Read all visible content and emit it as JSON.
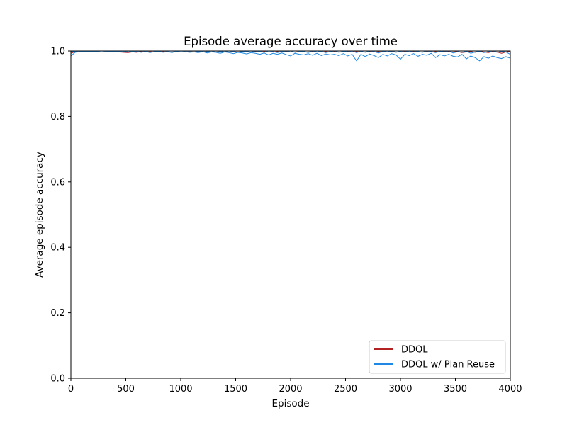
{
  "chart_data": {
    "type": "line",
    "title": "Episode average accuracy over time",
    "xlabel": "Episode",
    "ylabel": "Average episode accuracy",
    "xlim": [
      0,
      4000
    ],
    "ylim": [
      0.0,
      1.0
    ],
    "xticks": [
      0,
      500,
      1000,
      1500,
      2000,
      2500,
      3000,
      3500,
      4000
    ],
    "xtick_labels": [
      "0",
      "500",
      "1000",
      "1500",
      "2000",
      "2500",
      "3000",
      "3500",
      "4000"
    ],
    "yticks": [
      0.0,
      0.2,
      0.4,
      0.6,
      0.8,
      1.0
    ],
    "ytick_labels": [
      "0.0",
      "0.2",
      "0.4",
      "0.6",
      "0.8",
      "1.0"
    ],
    "grid": false,
    "legend_position": "bottom-right",
    "series": [
      {
        "name": "DDQL",
        "color": "#b22222",
        "x": [
          0,
          40,
          80,
          120,
          160,
          200,
          240,
          280,
          320,
          360,
          400,
          440,
          480,
          520,
          560,
          600,
          640,
          680,
          720,
          760,
          800,
          840,
          880,
          920,
          960,
          1000,
          1040,
          1080,
          1120,
          1160,
          1200,
          1240,
          1280,
          1320,
          1360,
          1400,
          1440,
          1480,
          1520,
          1560,
          1600,
          1640,
          1680,
          1720,
          1760,
          1800,
          1840,
          1880,
          1920,
          1960,
          2000,
          2040,
          2080,
          2120,
          2160,
          2200,
          2240,
          2280,
          2320,
          2360,
          2400,
          2440,
          2480,
          2520,
          2560,
          2600,
          2640,
          2680,
          2720,
          2760,
          2800,
          2840,
          2880,
          2920,
          2960,
          3000,
          3040,
          3080,
          3120,
          3160,
          3200,
          3240,
          3280,
          3320,
          3360,
          3400,
          3440,
          3480,
          3520,
          3560,
          3600,
          3640,
          3680,
          3720,
          3760,
          3800,
          3840,
          3880,
          3920,
          3960,
          4000
        ],
        "y": [
          0.993,
          0.998,
          1.0,
          0.999,
          1.0,
          1.0,
          1.0,
          1.0,
          1.0,
          0.999,
          0.998,
          0.997,
          0.996,
          0.995,
          0.997,
          0.996,
          0.999,
          1.0,
          0.999,
          1.0,
          1.0,
          0.999,
          1.0,
          1.0,
          0.999,
          1.0,
          1.0,
          0.999,
          1.0,
          0.999,
          1.0,
          0.999,
          1.0,
          1.0,
          0.999,
          1.0,
          1.0,
          0.999,
          1.0,
          0.999,
          1.0,
          1.0,
          0.999,
          1.0,
          0.999,
          1.0,
          1.0,
          0.999,
          1.0,
          0.999,
          1.0,
          1.0,
          0.999,
          1.0,
          1.0,
          0.999,
          1.0,
          1.0,
          0.999,
          1.0,
          0.999,
          1.0,
          1.0,
          0.999,
          1.0,
          0.999,
          1.0,
          1.0,
          0.999,
          1.0,
          0.999,
          1.0,
          1.0,
          0.999,
          1.0,
          1.0,
          0.999,
          1.0,
          0.999,
          1.0,
          1.0,
          0.999,
          1.0,
          0.999,
          1.0,
          0.998,
          0.999,
          1.0,
          0.998,
          0.995,
          0.997,
          0.998,
          0.996,
          0.999,
          0.997,
          0.995,
          0.998,
          0.997,
          0.993,
          0.997,
          0.999
        ]
      },
      {
        "name": "DDQL w/ Plan Reuse",
        "color": "#1e88e5",
        "x": [
          0,
          40,
          80,
          120,
          160,
          200,
          240,
          280,
          320,
          360,
          400,
          440,
          480,
          520,
          560,
          600,
          640,
          680,
          720,
          760,
          800,
          840,
          880,
          920,
          960,
          1000,
          1040,
          1080,
          1120,
          1160,
          1200,
          1240,
          1280,
          1320,
          1360,
          1400,
          1440,
          1480,
          1520,
          1560,
          1600,
          1640,
          1680,
          1720,
          1760,
          1800,
          1840,
          1880,
          1920,
          1960,
          2000,
          2040,
          2080,
          2120,
          2160,
          2200,
          2240,
          2280,
          2320,
          2360,
          2400,
          2440,
          2480,
          2520,
          2560,
          2600,
          2640,
          2680,
          2720,
          2760,
          2800,
          2840,
          2880,
          2920,
          2960,
          3000,
          3040,
          3080,
          3120,
          3160,
          3200,
          3240,
          3280,
          3320,
          3360,
          3400,
          3440,
          3480,
          3520,
          3560,
          3600,
          3640,
          3680,
          3720,
          3760,
          3800,
          3840,
          3880,
          3920,
          3960,
          4000
        ],
        "y": [
          0.985,
          0.996,
          0.998,
          0.999,
          0.998,
          0.999,
          0.998,
          1.0,
          0.999,
          0.998,
          0.999,
          0.998,
          1.0,
          0.997,
          0.999,
          0.998,
          0.996,
          0.999,
          0.995,
          0.998,
          0.999,
          0.996,
          0.998,
          0.995,
          0.999,
          0.997,
          0.998,
          0.996,
          0.997,
          0.995,
          0.998,
          0.994,
          0.997,
          0.996,
          0.993,
          0.997,
          0.995,
          0.992,
          0.996,
          0.994,
          0.991,
          0.995,
          0.993,
          0.99,
          0.994,
          0.988,
          0.993,
          0.99,
          0.994,
          0.989,
          0.985,
          0.993,
          0.99,
          0.988,
          0.992,
          0.987,
          0.993,
          0.986,
          0.991,
          0.988,
          0.99,
          0.986,
          0.992,
          0.985,
          0.99,
          0.97,
          0.99,
          0.983,
          0.991,
          0.986,
          0.98,
          0.99,
          0.985,
          0.992,
          0.988,
          0.975,
          0.99,
          0.986,
          0.992,
          0.984,
          0.99,
          0.987,
          0.993,
          0.98,
          0.989,
          0.985,
          0.99,
          0.984,
          0.982,
          0.99,
          0.976,
          0.985,
          0.98,
          0.97,
          0.983,
          0.978,
          0.985,
          0.98,
          0.977,
          0.983,
          0.978
        ]
      },
      {
        "name": "",
        "color": "#1e88e5",
        "x": [
          0,
          40,
          80,
          120,
          160,
          200,
          240,
          280,
          320,
          360,
          400,
          440,
          480,
          520,
          560,
          600,
          640,
          680,
          720,
          760,
          800,
          840,
          880,
          920,
          960,
          1000,
          1040,
          1080,
          1120,
          1160,
          1200,
          1240,
          1280,
          1320,
          1360,
          1400,
          1440,
          1480,
          1520,
          1560,
          1600,
          1640,
          1680,
          1720,
          1760,
          1800,
          1840,
          1880,
          1920,
          1960,
          2000,
          2040,
          2080,
          2120,
          2160,
          2200,
          2240,
          2280,
          2320,
          2360,
          2400,
          2440,
          2480,
          2520,
          2560,
          2600,
          2640,
          2680,
          2720,
          2760,
          2800,
          2840,
          2880,
          2920,
          2960,
          3000,
          3040,
          3080,
          3120,
          3160,
          3200,
          3240,
          3280,
          3320,
          3360,
          3400,
          3440,
          3480,
          3520,
          3560,
          3600,
          3640,
          3680,
          3720,
          3760,
          3800,
          3840,
          3880,
          3920,
          3960,
          4000
        ],
        "y": [
          0.998,
          0.999,
          1.0,
          0.999,
          1.0,
          0.999,
          1.0,
          1.0,
          0.999,
          1.0,
          0.999,
          1.0,
          0.999,
          1.0,
          1.0,
          0.999,
          1.0,
          0.999,
          1.0,
          1.0,
          0.999,
          1.0,
          0.999,
          1.0,
          0.999,
          1.0,
          1.0,
          0.999,
          1.0,
          0.998,
          1.0,
          0.999,
          0.997,
          1.0,
          0.999,
          0.997,
          1.0,
          0.998,
          0.996,
          0.999,
          0.998,
          1.0,
          0.997,
          0.999,
          0.996,
          1.0,
          0.998,
          0.995,
          0.999,
          0.997,
          1.0,
          0.996,
          0.998,
          0.999,
          0.995,
          1.0,
          0.997,
          0.999,
          0.995,
          0.998,
          1.0,
          0.996,
          0.999,
          0.997,
          1.0,
          0.995,
          0.999,
          0.996,
          1.0,
          0.998,
          0.994,
          0.999,
          0.997,
          1.0,
          0.996,
          0.999,
          1.0,
          0.997,
          1.0,
          0.998,
          0.996,
          1.0,
          0.998,
          0.995,
          0.999,
          0.997,
          1.0,
          0.994,
          0.998,
          0.996,
          0.999,
          0.993,
          0.997,
          0.999,
          0.995,
          0.998,
          1.0,
          0.996,
          0.999,
          0.997,
          0.99
        ]
      }
    ]
  }
}
